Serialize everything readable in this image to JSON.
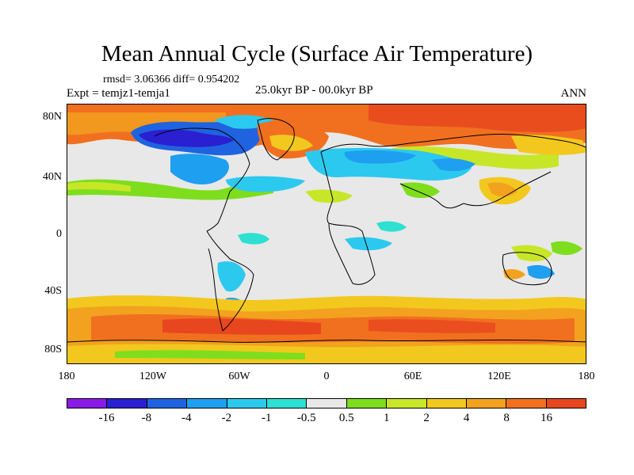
{
  "title": "Mean Annual Cycle (Surface Air Temperature)",
  "stats": "rmsd= 3.06366 diff= 0.954202",
  "experiment": "Expt = temjz1-temja1",
  "period": "25.0kyr BP - 00.0kyr BP",
  "season": "ANN",
  "lat_ticks": [
    "80N",
    "40N",
    "0",
    "40S",
    "80S"
  ],
  "lon_ticks": [
    "180",
    "120W",
    "60W",
    "0",
    "60E",
    "120E",
    "180"
  ],
  "colorbar": {
    "colors": [
      "#8a1ae6",
      "#2a1fd1",
      "#1f63e0",
      "#1e9ff0",
      "#2cc9ef",
      "#2ee0d2",
      "#e8e8e8",
      "#7ede1d",
      "#c8e628",
      "#f2c81e",
      "#f2a21e",
      "#f07020",
      "#e8461e"
    ],
    "labels": [
      "-16",
      "-8",
      "-4",
      "-2",
      "-1",
      "-0.5",
      "0.5",
      "1",
      "2",
      "4",
      "8",
      "16"
    ]
  }
}
